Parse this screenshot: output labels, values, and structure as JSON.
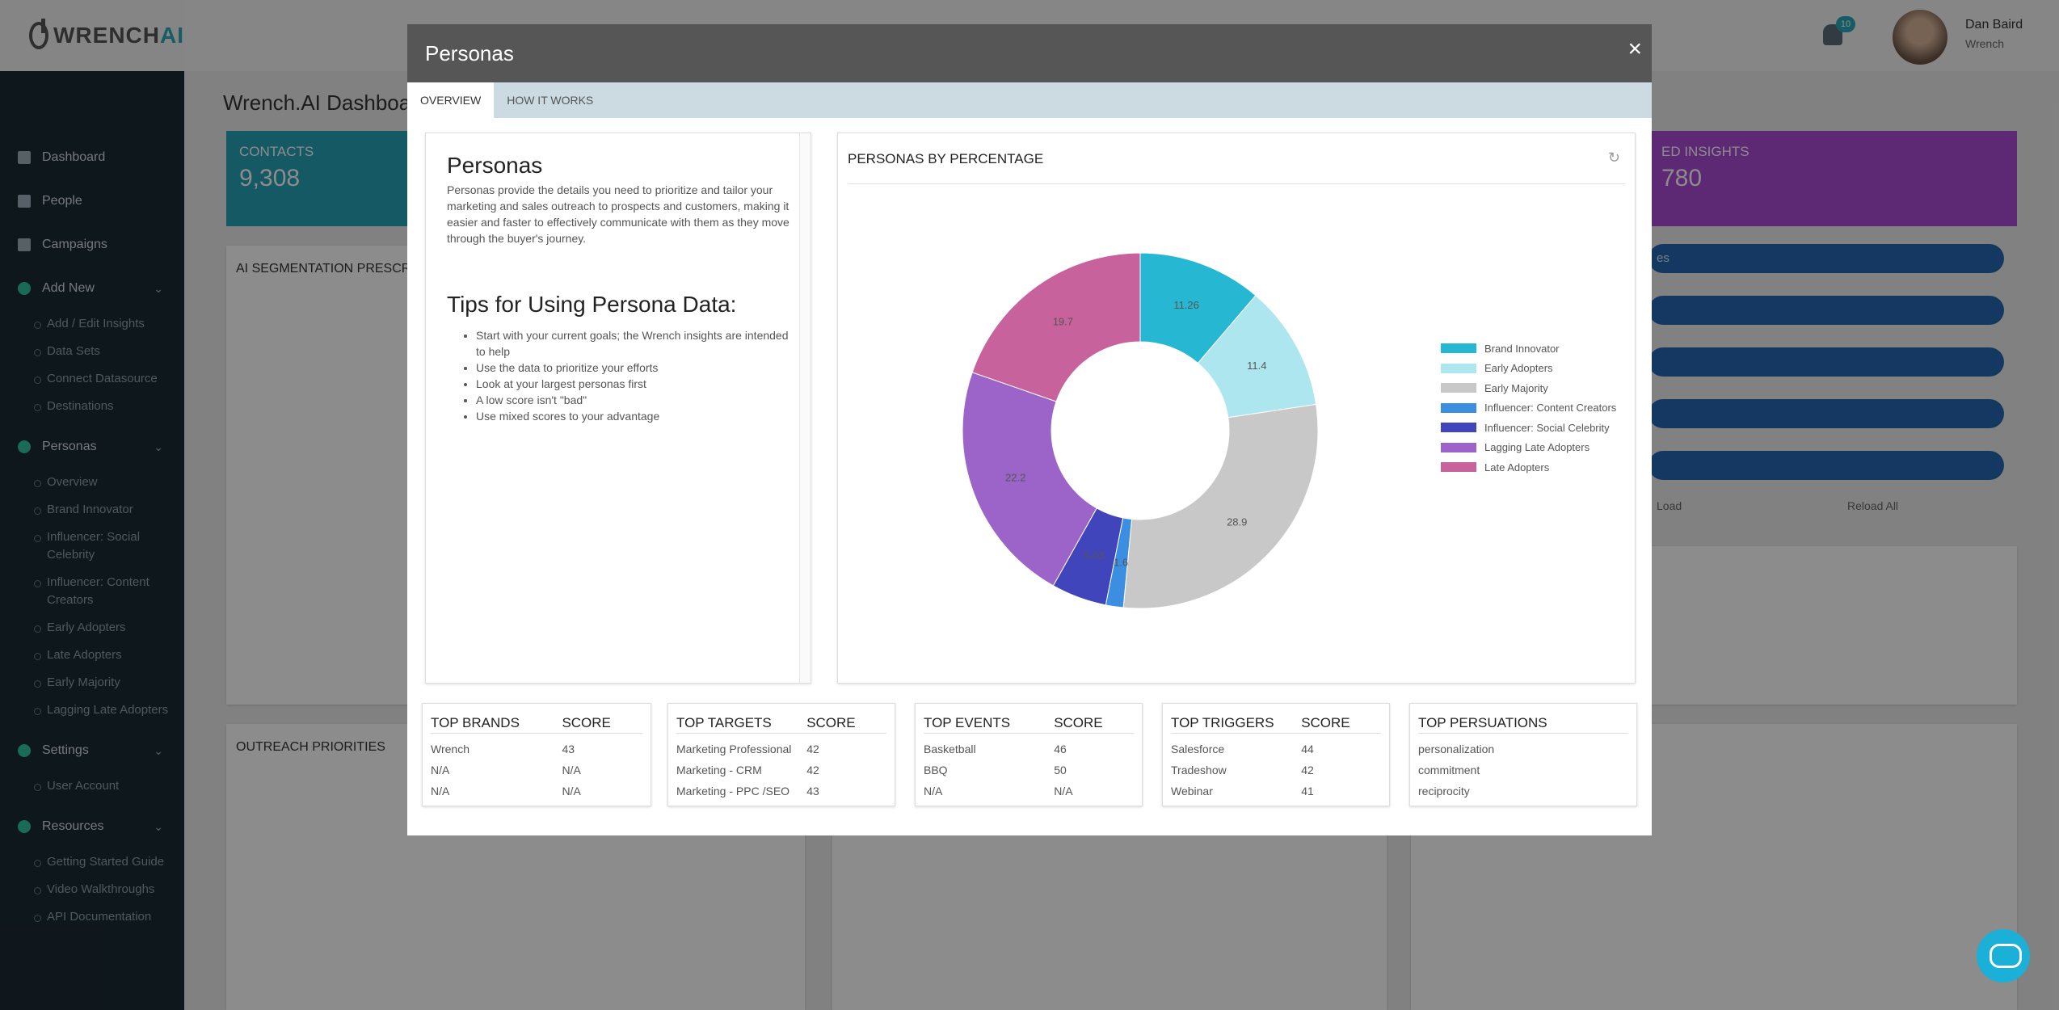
{
  "app": {
    "brand_main": "WRENCH",
    "brand_accent": "AI"
  },
  "sidebar": {
    "items": [
      {
        "label": "Dashboard"
      },
      {
        "label": "People"
      },
      {
        "label": "Campaigns"
      },
      {
        "label": "Add New"
      },
      {
        "label": "Personas"
      },
      {
        "label": "Settings"
      },
      {
        "label": "Resources"
      }
    ],
    "add_new_sub": [
      "Add / Edit Insights",
      "Data Sets",
      "Connect Datasource",
      "Destinations"
    ],
    "personas_sub": [
      "Overview",
      "Brand Innovator",
      "Influencer: Social Celebrity",
      "Influencer: Content Creators",
      "Early Adopters",
      "Late Adopters",
      "Early Majority",
      "Lagging Late Adopters"
    ],
    "settings_sub": [
      "User Account"
    ],
    "resources_sub": [
      "Getting Started Guide",
      "Video Walkthroughs",
      "API Documentation"
    ]
  },
  "header": {
    "notifications": "10",
    "user_name": "Dan Baird",
    "user_org": "Wrench"
  },
  "dashboard": {
    "title": "Wrench.AI Dashboard",
    "contacts_label": "CONTACTS",
    "contacts_value": "9,308",
    "insights_label": "ED INSIGHTS",
    "insights_value": "780",
    "segmentation_title": "AI SEGMENTATION PRESCRIPTION",
    "outreach_title": "OUTREACH PRIORITIES",
    "pill_text": "es",
    "load_label": "Load",
    "reload_label": "Reload All"
  },
  "modal": {
    "title": "Personas",
    "tabs": [
      "OVERVIEW",
      "HOW IT WORKS"
    ],
    "intro_heading": "Personas",
    "intro_text": "Personas provide the details you need to prioritize and tailor your marketing and sales outreach to prospects and customers, making it easier and faster to effectively communicate with them as they move through the buyer's journey.",
    "tips_heading": "Tips for Using Persona Data:",
    "tips": [
      "Start with your current goals; the Wrench insights are intended to help",
      "Use the data to prioritize your efforts",
      "Look at your largest personas first",
      "A low score isn't \"bad\"",
      "Use mixed scores to your advantage"
    ],
    "chart_title": "PERSONAS BY PERCENTAGE"
  },
  "chart_data": {
    "type": "pie",
    "title": "PERSONAS BY PERCENTAGE",
    "categories": [
      "Brand Innovator",
      "Early Adopters",
      "Early Majority",
      "Influencer: Content Creators",
      "Influencer: Social Celebrity",
      "Lagging Late Adopters",
      "Late Adopters"
    ],
    "values": [
      11.26,
      11.4,
      28.9,
      1.6,
      5.03,
      22.2,
      19.7
    ],
    "colors": [
      "#26b7d2",
      "#ade6ee",
      "#c8c8c8",
      "#3c8ee0",
      "#4045bb",
      "#9c64c8",
      "#c8629c"
    ],
    "legend": "right"
  },
  "bottom_cards": [
    {
      "h1": "TOP BRANDS",
      "h2": "SCORE",
      "rows": [
        [
          "Wrench",
          "43"
        ],
        [
          "N/A",
          "N/A"
        ],
        [
          "N/A",
          "N/A"
        ]
      ]
    },
    {
      "h1": "TOP TARGETS",
      "h2": "SCORE",
      "rows": [
        [
          "Marketing Professional",
          "42"
        ],
        [
          "Marketing - CRM",
          "42"
        ],
        [
          "Marketing - PPC /SEO",
          "43"
        ]
      ]
    },
    {
      "h1": "TOP EVENTS",
      "h2": "SCORE",
      "rows": [
        [
          "Basketball",
          "46"
        ],
        [
          "BBQ",
          "50"
        ],
        [
          "N/A",
          "N/A"
        ]
      ]
    },
    {
      "h1": "TOP TRIGGERS",
      "h2": "SCORE",
      "rows": [
        [
          "Salesforce",
          "44"
        ],
        [
          "Tradeshow",
          "42"
        ],
        [
          "Webinar",
          "41"
        ]
      ]
    },
    {
      "h1": "TOP PERSUATIONS",
      "h2": "",
      "rows": [
        [
          "personalization",
          ""
        ],
        [
          "commitment",
          ""
        ],
        [
          "reciprocity",
          ""
        ]
      ]
    }
  ]
}
